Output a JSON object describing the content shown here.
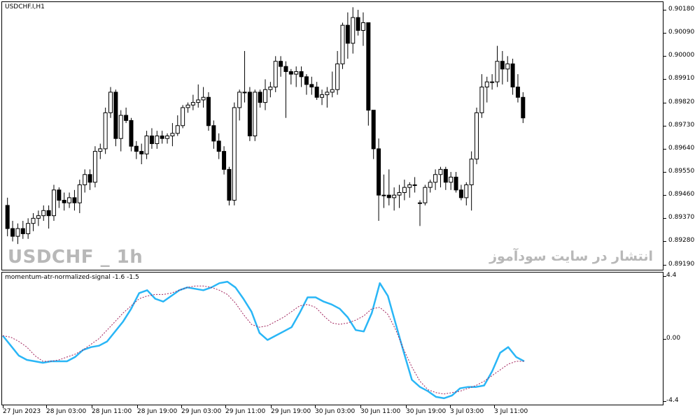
{
  "main": {
    "title": "USDCHF.I,H1",
    "watermark_left": "USDCHF _ 1h",
    "watermark_right": "انتشار در سایت سودآموز",
    "y_axis": [
      "0.90180",
      "0.90090",
      "0.90000",
      "0.89910",
      "0.89820",
      "0.89730",
      "0.89640",
      "0.89550",
      "0.89460",
      "0.89370",
      "0.89280",
      "0.89190"
    ],
    "colors": {
      "bull_body": "#ffffff",
      "bear_body": "#000000",
      "wick": "#000000"
    }
  },
  "sub": {
    "title": "momentum-atr-normalized-signal -1.6 -1.5",
    "y_axis": [
      "4.4",
      "0.00",
      "-4.4"
    ],
    "colors": {
      "momentum": "#29b6f6",
      "signal": "#a0205a"
    }
  },
  "x_axis": [
    "27 Jun 2023",
    "28 Jun 03:00",
    "28 Jun 11:00",
    "28 Jun 19:00",
    "29 Jun 03:00",
    "29 Jun 11:00",
    "29 Jun 19:00",
    "30 Jun 03:00",
    "30 Jun 11:00",
    "30 Jun 19:00",
    "3 Jul 03:00",
    "3 Jul 11:00"
  ],
  "chart_data": [
    {
      "type": "candlestick",
      "title": "USDCHF.I,H1",
      "ylim": [
        0.8917,
        0.9021
      ],
      "candles": [
        [
          0.8942,
          0.8945,
          0.893,
          0.8933
        ],
        [
          0.8933,
          0.8936,
          0.8928,
          0.893
        ],
        [
          0.893,
          0.8935,
          0.8927,
          0.8933
        ],
        [
          0.8933,
          0.8936,
          0.8929,
          0.8931
        ],
        [
          0.8931,
          0.8937,
          0.8929,
          0.8935
        ],
        [
          0.8935,
          0.8939,
          0.8932,
          0.8937
        ],
        [
          0.8937,
          0.894,
          0.8934,
          0.8938
        ],
        [
          0.8938,
          0.8942,
          0.8936,
          0.894
        ],
        [
          0.894,
          0.8942,
          0.8933,
          0.8938
        ],
        [
          0.8938,
          0.895,
          0.8936,
          0.8948
        ],
        [
          0.8948,
          0.8949,
          0.8941,
          0.8944
        ],
        [
          0.8944,
          0.8947,
          0.894,
          0.8943
        ],
        [
          0.8943,
          0.8947,
          0.8941,
          0.8945
        ],
        [
          0.8945,
          0.8948,
          0.894,
          0.8943
        ],
        [
          0.8943,
          0.8952,
          0.8939,
          0.895
        ],
        [
          0.895,
          0.8956,
          0.8947,
          0.8954
        ],
        [
          0.8954,
          0.8956,
          0.8948,
          0.8951
        ],
        [
          0.8951,
          0.8965,
          0.8949,
          0.8963
        ],
        [
          0.8963,
          0.8966,
          0.896,
          0.8964
        ],
        [
          0.8964,
          0.898,
          0.8962,
          0.8978
        ],
        [
          0.8978,
          0.8988,
          0.8976,
          0.8986
        ],
        [
          0.8986,
          0.8987,
          0.8965,
          0.8968
        ],
        [
          0.8968,
          0.8979,
          0.8963,
          0.8977
        ],
        [
          0.8977,
          0.898,
          0.8974,
          0.8975
        ],
        [
          0.8975,
          0.8976,
          0.8963,
          0.8965
        ],
        [
          0.8965,
          0.8967,
          0.896,
          0.8963
        ],
        [
          0.8963,
          0.8966,
          0.8958,
          0.8962
        ],
        [
          0.8962,
          0.8971,
          0.896,
          0.8969
        ],
        [
          0.8969,
          0.8972,
          0.8964,
          0.8966
        ],
        [
          0.8966,
          0.8971,
          0.8964,
          0.8969
        ],
        [
          0.8969,
          0.8971,
          0.8966,
          0.8968
        ],
        [
          0.8968,
          0.897,
          0.8966,
          0.8969
        ],
        [
          0.8969,
          0.8974,
          0.8965,
          0.897
        ],
        [
          0.897,
          0.8977,
          0.8969,
          0.8973
        ],
        [
          0.8973,
          0.8981,
          0.8972,
          0.898
        ],
        [
          0.898,
          0.8982,
          0.8978,
          0.8981
        ],
        [
          0.8981,
          0.8985,
          0.8979,
          0.8982
        ],
        [
          0.8982,
          0.8989,
          0.898,
          0.8983
        ],
        [
          0.8983,
          0.8988,
          0.898,
          0.8984
        ],
        [
          0.8984,
          0.8986,
          0.8971,
          0.8973
        ],
        [
          0.8973,
          0.8975,
          0.8964,
          0.8967
        ],
        [
          0.8967,
          0.897,
          0.896,
          0.8963
        ],
        [
          0.8963,
          0.8965,
          0.8954,
          0.8956
        ],
        [
          0.8956,
          0.8957,
          0.8942,
          0.8944
        ],
        [
          0.8944,
          0.8982,
          0.8942,
          0.898
        ],
        [
          0.898,
          0.8987,
          0.8975,
          0.8986
        ],
        [
          0.8986,
          0.9002,
          0.8982,
          0.8986
        ],
        [
          0.8986,
          0.8988,
          0.8967,
          0.8969
        ],
        [
          0.8969,
          0.8987,
          0.8967,
          0.8986
        ],
        [
          0.8986,
          0.8987,
          0.898,
          0.8982
        ],
        [
          0.8982,
          0.8991,
          0.8979,
          0.8987
        ],
        [
          0.8987,
          0.899,
          0.8984,
          0.8988
        ],
        [
          0.8988,
          0.9,
          0.8986,
          0.8998
        ],
        [
          0.8998,
          0.9,
          0.8992,
          0.8996
        ],
        [
          0.8996,
          0.8998,
          0.8976,
          0.8994
        ],
        [
          0.8994,
          0.8995,
          0.8989,
          0.8993
        ],
        [
          0.8993,
          0.8996,
          0.8988,
          0.8994
        ],
        [
          0.8994,
          0.8996,
          0.8988,
          0.8992
        ],
        [
          0.8992,
          0.8993,
          0.8985,
          0.8989
        ],
        [
          0.8989,
          0.8992,
          0.8985,
          0.8988
        ],
        [
          0.8988,
          0.899,
          0.8983,
          0.8984
        ],
        [
          0.8984,
          0.8987,
          0.8981,
          0.8985
        ],
        [
          0.8985,
          0.8988,
          0.898,
          0.8986
        ],
        [
          0.8986,
          0.8994,
          0.8984,
          0.8987
        ],
        [
          0.8987,
          0.9002,
          0.8985,
          0.8997
        ],
        [
          0.8997,
          0.9013,
          0.8995,
          0.9012
        ],
        [
          0.9012,
          0.9017,
          0.8999,
          0.9005
        ],
        [
          0.9005,
          0.9019,
          0.9001,
          0.9015
        ],
        [
          0.9015,
          0.9018,
          0.9008,
          0.901
        ],
        [
          0.901,
          0.9017,
          0.9004,
          0.9013
        ],
        [
          0.9013,
          0.9013,
          0.8973,
          0.8979
        ],
        [
          0.8979,
          0.8979,
          0.896,
          0.8964
        ],
        [
          0.8964,
          0.8968,
          0.8936,
          0.8946
        ],
        [
          0.8946,
          0.8954,
          0.8941,
          0.8946
        ],
        [
          0.8946,
          0.8956,
          0.8942,
          0.8945
        ],
        [
          0.8945,
          0.8949,
          0.894,
          0.8946
        ],
        [
          0.8946,
          0.895,
          0.8941,
          0.8947
        ],
        [
          0.8947,
          0.8952,
          0.8944,
          0.8949
        ],
        [
          0.8949,
          0.8951,
          0.8945,
          0.895
        ],
        [
          0.895,
          0.8953,
          0.8947,
          0.895
        ],
        [
          0.8943,
          0.8944,
          0.8934,
          0.8943
        ],
        [
          0.8943,
          0.895,
          0.8942,
          0.8949
        ],
        [
          0.8949,
          0.8952,
          0.8947,
          0.8951
        ],
        [
          0.8951,
          0.8956,
          0.8948,
          0.8954
        ],
        [
          0.8954,
          0.8957,
          0.8949,
          0.8956
        ],
        [
          0.8956,
          0.8957,
          0.8948,
          0.8951
        ],
        [
          0.8951,
          0.8955,
          0.8948,
          0.8953
        ],
        [
          0.8953,
          0.8955,
          0.8947,
          0.8948
        ],
        [
          0.8948,
          0.895,
          0.8944,
          0.8945
        ],
        [
          0.8945,
          0.8951,
          0.8942,
          0.895
        ],
        [
          0.895,
          0.8963,
          0.894,
          0.896
        ],
        [
          0.896,
          0.898,
          0.8958,
          0.8978
        ],
        [
          0.8978,
          0.8993,
          0.8976,
          0.8988
        ],
        [
          0.8988,
          0.8992,
          0.8982,
          0.899
        ],
        [
          0.899,
          0.8993,
          0.8987,
          0.899
        ],
        [
          0.899,
          0.9004,
          0.8988,
          0.8998
        ],
        [
          0.8998,
          0.9002,
          0.8989,
          0.8995
        ],
        [
          0.8995,
          0.9,
          0.899,
          0.8997
        ],
        [
          0.8997,
          0.8999,
          0.8985,
          0.8988
        ],
        [
          0.8988,
          0.8993,
          0.8982,
          0.8984
        ],
        [
          0.8984,
          0.8986,
          0.8974,
          0.8976
        ]
      ]
    },
    {
      "type": "line",
      "title": "momentum-atr-normalized-signal -1.6 -1.5",
      "ylim": [
        -4.4,
        4.4
      ],
      "series": [
        {
          "values": [
            0.2,
            -0.5,
            -1.2,
            -1.5,
            -1.6,
            -1.7,
            -1.6,
            -1.6,
            -1.6,
            -1.3,
            -0.8,
            -0.6,
            -0.5,
            -0.2,
            0.5,
            1.2,
            2.1,
            3.2,
            3.4,
            2.8,
            2.6,
            3.0,
            3.4,
            3.6,
            3.5,
            3.4,
            3.6,
            3.9,
            4.0,
            3.6,
            2.8,
            1.9,
            0.4,
            -0.1,
            0.2,
            0.5,
            0.8,
            1.8,
            2.9,
            2.9,
            2.6,
            2.4,
            2.1,
            1.5,
            0.6,
            0.5,
            1.8,
            3.9,
            3.0,
            1.0,
            -1.0,
            -2.9,
            -3.4,
            -3.7,
            -4.1,
            -4.2,
            -4.0,
            -3.5,
            -3.4,
            -3.4,
            -3.3,
            -2.3,
            -1.0,
            -0.6,
            -1.3,
            -1.6
          ]
        },
        {
          "values": [
            0.2,
            0.1,
            -0.2,
            -0.6,
            -1.2,
            -1.6,
            -1.6,
            -1.5,
            -1.3,
            -1.1,
            -0.8,
            -0.4,
            0.0,
            0.6,
            1.2,
            1.8,
            2.3,
            2.8,
            3.0,
            3.1,
            3.1,
            3.2,
            3.4,
            3.6,
            3.7,
            3.7,
            3.6,
            3.4,
            3.1,
            2.5,
            1.7,
            1.0,
            0.8,
            0.9,
            1.2,
            1.5,
            1.9,
            2.3,
            2.4,
            2.2,
            1.6,
            1.1,
            1.0,
            1.1,
            1.3,
            1.6,
            2.1,
            2.2,
            1.7,
            0.6,
            -0.8,
            -2.0,
            -3.0,
            -3.6,
            -3.8,
            -3.9,
            -3.8,
            -3.7,
            -3.5,
            -3.3,
            -3.0,
            -2.6,
            -2.2,
            -1.8,
            -1.6,
            -1.6
          ]
        }
      ]
    }
  ]
}
